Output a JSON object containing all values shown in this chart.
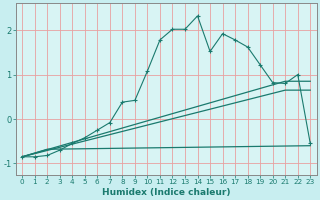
{
  "xlabel": "Humidex (Indice chaleur)",
  "bg_color": "#c8eef0",
  "plot_bg_color": "#d8f4f4",
  "line_color": "#1a7a6e",
  "grid_color": "#e8a0a0",
  "ylim": [
    -1.25,
    2.6
  ],
  "xlim": [
    -0.5,
    23.5
  ],
  "yticks": [
    -1,
    0,
    1,
    2
  ],
  "xticks": [
    0,
    1,
    2,
    3,
    4,
    5,
    6,
    7,
    8,
    9,
    10,
    11,
    12,
    13,
    14,
    15,
    16,
    17,
    18,
    19,
    20,
    21,
    22,
    23
  ],
  "curve1_x": [
    0,
    1,
    2,
    3,
    4,
    5,
    6,
    7,
    8,
    9,
    10,
    11,
    12,
    13,
    14,
    15,
    16,
    17,
    18,
    19,
    20,
    21,
    22,
    23
  ],
  "curve1_y": [
    -0.85,
    -0.85,
    -0.82,
    -0.7,
    -0.55,
    -0.42,
    -0.25,
    -0.08,
    0.38,
    0.42,
    1.08,
    1.78,
    2.02,
    2.02,
    2.32,
    1.52,
    1.92,
    1.78,
    1.62,
    1.22,
    0.82,
    0.8,
    1.0,
    -0.55
  ],
  "curve2_x": [
    0,
    21,
    23
  ],
  "curve2_y": [
    -0.85,
    0.85,
    0.85
  ],
  "curve3_x": [
    0,
    21,
    23
  ],
  "curve3_y": [
    -0.85,
    0.65,
    0.65
  ],
  "curve4_x": [
    0,
    2,
    23
  ],
  "curve4_y": [
    -0.85,
    -0.68,
    -0.6
  ]
}
